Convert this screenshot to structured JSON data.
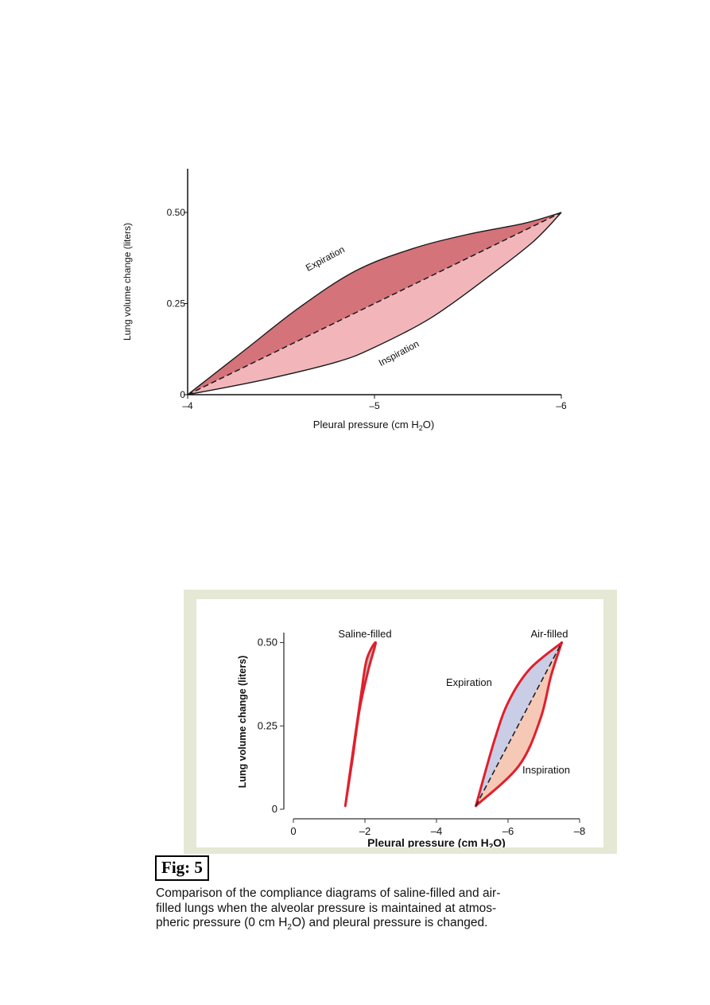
{
  "chart_data": [
    {
      "type": "line",
      "xlabel": "Pleural pressure (cm H",
      "xlabel_sub": "2",
      "xlabel_end": "O)",
      "ylabel": "Lung volume change (liters)",
      "xlim": [
        -4,
        -6
      ],
      "ylim": [
        0,
        0.62
      ],
      "x_ticks": [
        -4,
        -5,
        -6
      ],
      "x_tick_labels": [
        "–4",
        "–5",
        "–6"
      ],
      "y_ticks": [
        0,
        0.25,
        0.5
      ],
      "y_tick_labels": [
        "0",
        "0.25",
        "0.50"
      ],
      "colors": {
        "expiration_fill": "#d4737a",
        "inspiration_fill": "#f2b6ba",
        "line": "#1a1a1a"
      },
      "series": [
        {
          "name": "Expiration",
          "x": [
            -4,
            -4.3,
            -4.6,
            -4.9,
            -5.2,
            -5.5,
            -5.8,
            -6.0
          ],
          "y": [
            0,
            0.12,
            0.24,
            0.34,
            0.4,
            0.44,
            0.47,
            0.5
          ]
        },
        {
          "name": "Inspiration",
          "x": [
            -4,
            -4.4,
            -4.8,
            -5.0,
            -5.3,
            -5.6,
            -5.85,
            -6.0
          ],
          "y": [
            0,
            0.04,
            0.09,
            0.13,
            0.21,
            0.32,
            0.42,
            0.5
          ]
        },
        {
          "name": "",
          "x": [
            -4,
            -6
          ],
          "y": [
            0,
            0.5
          ]
        }
      ]
    },
    {
      "type": "line",
      "xlabel": "Pleural pressure (cm H",
      "xlabel_sub": "2",
      "xlabel_end": "O)",
      "ylabel": "Lung volume change (liters)",
      "xlim": [
        0,
        -8
      ],
      "ylim": [
        0,
        0.53
      ],
      "x_ticks": [
        0,
        -2,
        -4,
        -6,
        -8
      ],
      "x_tick_labels": [
        "0",
        "–2",
        "–4",
        "–6",
        "–8"
      ],
      "y_ticks": [
        0,
        0.25,
        0.5
      ],
      "y_tick_labels": [
        "0",
        "0.25",
        "0.50"
      ],
      "colors": {
        "outline": "#e0202c",
        "expiration_fill": "#c9cde6",
        "inspiration_fill": "#f6c8b6",
        "saline_fill": "#c3c3c3",
        "dashed": "#222222"
      },
      "labels": {
        "saline": "Saline-filled",
        "air": "Air-filled",
        "expiration": "Expiration",
        "inspiration": "Inspiration"
      },
      "series": [
        {
          "name": "Saline-filled",
          "x": [
            -1.45,
            -1.7,
            -1.9,
            -2.05,
            -2.3,
            -2.1,
            -1.85,
            -1.65,
            -1.45
          ],
          "y": [
            0.01,
            0.2,
            0.35,
            0.45,
            0.5,
            0.42,
            0.3,
            0.15,
            0.01
          ]
        },
        {
          "name": "Expiration",
          "x": [
            -5.1,
            -5.6,
            -6.0,
            -6.6,
            -7.5
          ],
          "y": [
            0.01,
            0.2,
            0.32,
            0.42,
            0.5
          ]
        },
        {
          "name": "Inspiration",
          "x": [
            -5.1,
            -6.3,
            -6.9,
            -7.2,
            -7.5
          ],
          "y": [
            0.01,
            0.13,
            0.27,
            0.4,
            0.5
          ]
        },
        {
          "name": "",
          "x": [
            -5.1,
            -7.5
          ],
          "y": [
            0.01,
            0.5
          ]
        }
      ]
    }
  ],
  "figure": {
    "label": "Fig: 5",
    "caption_lines": [
      "Comparison of the compliance diagrams of saline-filled and air-",
      "filled lungs when the alveolar pressure is maintained at atmos-",
      "pheric pressure (0 cm H"
    ],
    "caption_sub": "2",
    "caption_end": "O) and pleural pressure is changed."
  }
}
